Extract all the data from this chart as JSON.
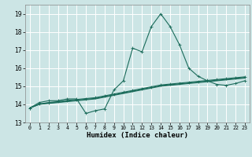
{
  "title": "",
  "xlabel": "Humidex (Indice chaleur)",
  "xlim": [
    -0.5,
    23.5
  ],
  "ylim": [
    13,
    19.5
  ],
  "yticks": [
    13,
    14,
    15,
    16,
    17,
    18,
    19
  ],
  "xticks": [
    0,
    1,
    2,
    3,
    4,
    5,
    6,
    7,
    8,
    9,
    10,
    11,
    12,
    13,
    14,
    15,
    16,
    17,
    18,
    19,
    20,
    21,
    22,
    23
  ],
  "bg_color": "#cce5e5",
  "grid_color": "#ffffff",
  "line_color": "#1a6b5a",
  "line1_y": [
    13.8,
    14.1,
    14.2,
    14.2,
    14.3,
    14.3,
    13.5,
    13.65,
    13.75,
    14.8,
    15.3,
    17.1,
    16.9,
    18.3,
    19.0,
    18.3,
    17.3,
    16.0,
    15.55,
    15.3,
    15.1,
    15.05,
    15.15,
    15.3
  ],
  "line2_y": [
    13.8,
    14.0,
    14.05,
    14.1,
    14.15,
    14.2,
    14.25,
    14.3,
    14.4,
    14.5,
    14.6,
    14.7,
    14.8,
    14.9,
    15.0,
    15.05,
    15.1,
    15.15,
    15.2,
    15.25,
    15.3,
    15.35,
    15.4,
    15.45
  ],
  "line3_y": [
    13.8,
    14.0,
    14.08,
    14.12,
    14.18,
    14.22,
    14.28,
    14.33,
    14.43,
    14.53,
    14.63,
    14.73,
    14.83,
    14.93,
    15.03,
    15.08,
    15.13,
    15.18,
    15.23,
    15.28,
    15.33,
    15.38,
    15.43,
    15.48
  ],
  "line4_y": [
    13.8,
    14.02,
    14.1,
    14.15,
    14.22,
    14.27,
    14.32,
    14.37,
    14.47,
    14.57,
    14.67,
    14.77,
    14.87,
    14.97,
    15.07,
    15.12,
    15.17,
    15.22,
    15.27,
    15.32,
    15.37,
    15.42,
    15.47,
    15.52
  ]
}
